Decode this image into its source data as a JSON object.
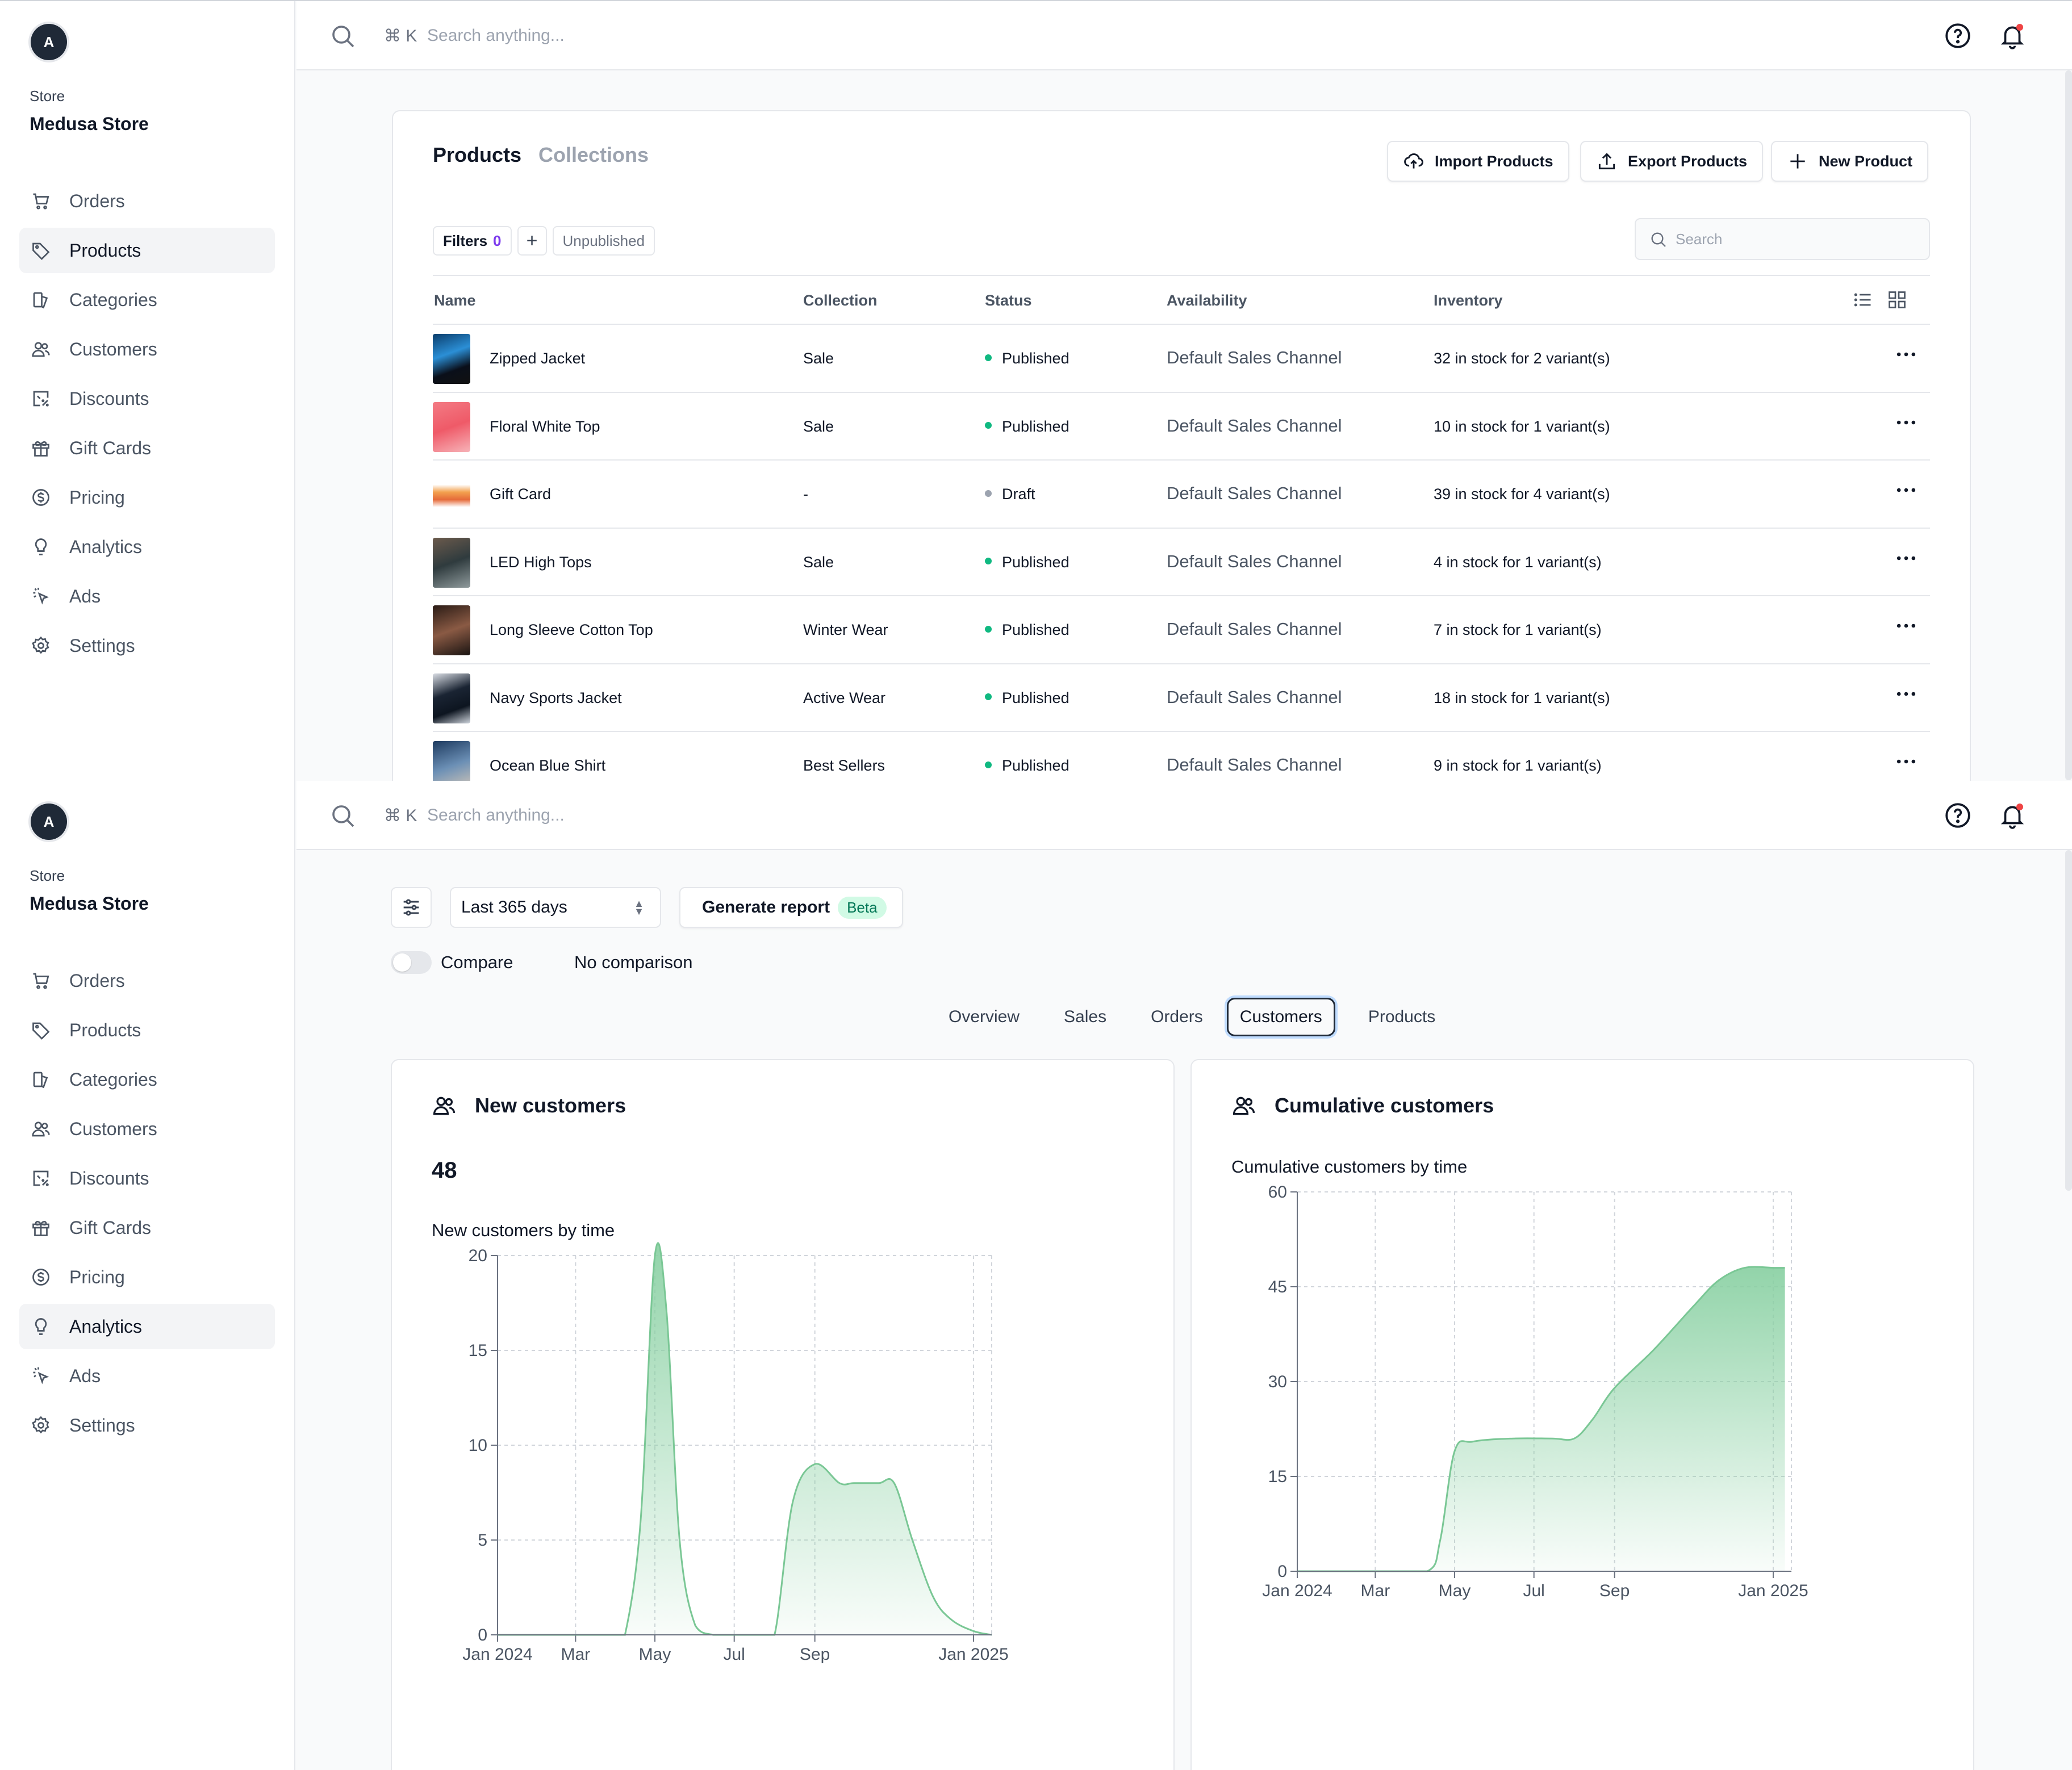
{
  "sidebar": {
    "avatar_letter": "A",
    "store_label": "Store",
    "store_name": "Medusa Store",
    "items": [
      {
        "label": "Orders",
        "icon": "cart-icon"
      },
      {
        "label": "Products",
        "icon": "tag-icon"
      },
      {
        "label": "Categories",
        "icon": "categories-icon"
      },
      {
        "label": "Customers",
        "icon": "users-icon"
      },
      {
        "label": "Discounts",
        "icon": "discount-icon"
      },
      {
        "label": "Gift Cards",
        "icon": "gift-icon"
      },
      {
        "label": "Pricing",
        "icon": "dollar-icon"
      },
      {
        "label": "Analytics",
        "icon": "lightbulb-icon"
      },
      {
        "label": "Ads",
        "icon": "cursor-click-icon"
      },
      {
        "label": "Settings",
        "icon": "gear-icon"
      }
    ]
  },
  "topbar": {
    "shortcut": "⌘ K",
    "search_placeholder": "Search anything..."
  },
  "products_page": {
    "tabs": [
      "Products",
      "Collections"
    ],
    "buttons": {
      "import": "Import Products",
      "export": "Export Products",
      "new": "New Product"
    },
    "filters_label": "Filters",
    "filters_count": "0",
    "filter_add": "+",
    "filter_chip": "Unpublished",
    "search_placeholder": "Search",
    "columns": [
      "Name",
      "Collection",
      "Status",
      "Availability",
      "Inventory"
    ],
    "rows": [
      {
        "name": "Zipped Jacket",
        "collection": "Sale",
        "status": "Published",
        "availability": "Default Sales Channel",
        "inventory": "32 in stock for 2 variant(s)"
      },
      {
        "name": "Floral White Top",
        "collection": "Sale",
        "status": "Published",
        "availability": "Default Sales Channel",
        "inventory": "10 in stock for 1 variant(s)"
      },
      {
        "name": "Gift Card",
        "collection": "-",
        "status": "Draft",
        "availability": "Default Sales Channel",
        "inventory": "39 in stock for 4 variant(s)"
      },
      {
        "name": "LED High Tops",
        "collection": "Sale",
        "status": "Published",
        "availability": "Default Sales Channel",
        "inventory": "4 in stock for 1 variant(s)"
      },
      {
        "name": "Long Sleeve Cotton Top",
        "collection": "Winter Wear",
        "status": "Published",
        "availability": "Default Sales Channel",
        "inventory": "7 in stock for 1 variant(s)"
      },
      {
        "name": "Navy Sports Jacket",
        "collection": "Active Wear",
        "status": "Published",
        "availability": "Default Sales Channel",
        "inventory": "18 in stock for 1 variant(s)"
      },
      {
        "name": "Ocean Blue Shirt",
        "collection": "Best Sellers",
        "status": "Published",
        "availability": "Default Sales Channel",
        "inventory": "9 in stock for 1 variant(s)"
      }
    ]
  },
  "analytics_page": {
    "range": "Last 365 days",
    "generate_report": "Generate report",
    "beta_badge": "Beta",
    "compare_label": "Compare",
    "comparison_value": "No comparison",
    "tabs": [
      "Overview",
      "Sales",
      "Orders",
      "Customers",
      "Products"
    ],
    "active_tab": "Customers",
    "new_customers": {
      "title": "New customers",
      "value": "48",
      "chart_title": "New customers by time"
    },
    "cumulative_customers": {
      "title": "Cumulative customers",
      "chart_title": "Cumulative customers by time"
    }
  },
  "colors": {
    "published": "#10b981",
    "draft": "#9ca3af",
    "chart_fill": "#86cfa0",
    "chart_line": "#7ac795"
  },
  "chart_data": [
    {
      "type": "area",
      "title": "New customers by time",
      "x_ticks": [
        "Jan 2024",
        "Mar",
        "May",
        "Jul",
        "Sep",
        "Jan 2025"
      ],
      "y_ticks": [
        0,
        5,
        10,
        15,
        20
      ],
      "ylim": [
        0,
        20
      ],
      "grid": true,
      "series": [
        {
          "x": [
            "2024-01-01",
            "2024-02-01",
            "2024-03-01",
            "2024-04-01",
            "2024-04-08",
            "2024-04-20",
            "2024-05-01",
            "2024-05-10",
            "2024-05-20",
            "2024-06-01",
            "2024-06-15",
            "2024-07-01",
            "2024-07-20",
            "2024-08-01",
            "2024-08-15",
            "2024-09-01",
            "2024-09-20",
            "2024-10-01",
            "2024-10-20",
            "2024-11-01",
            "2024-11-15",
            "2024-12-01",
            "2024-12-15",
            "2025-01-01",
            "2025-01-15"
          ],
          "y": [
            0,
            0,
            0,
            0,
            0,
            6,
            20,
            17,
            5,
            0.5,
            0,
            0,
            0,
            0,
            7,
            9,
            8,
            8,
            8,
            8,
            5,
            2,
            0.8,
            0.2,
            0
          ]
        }
      ]
    },
    {
      "type": "area",
      "title": "Cumulative customers by time",
      "x_ticks": [
        "Jan 2024",
        "Mar",
        "May",
        "Jul",
        "Sep",
        "Jan 2025"
      ],
      "y_ticks": [
        0,
        15,
        30,
        45,
        60
      ],
      "ylim": [
        0,
        60
      ],
      "grid": true,
      "series": [
        {
          "x": [
            "2024-01-01",
            "2024-03-01",
            "2024-04-10",
            "2024-04-20",
            "2024-05-01",
            "2024-05-15",
            "2024-06-15",
            "2024-07-15",
            "2024-08-01",
            "2024-08-15",
            "2024-09-01",
            "2024-10-01",
            "2024-11-01",
            "2024-11-20",
            "2024-12-10",
            "2025-01-01",
            "2025-01-10"
          ],
          "y": [
            0,
            0,
            0,
            5,
            19,
            20.5,
            21,
            21,
            21,
            24,
            29,
            35,
            42,
            46,
            48,
            48,
            48
          ]
        }
      ]
    }
  ]
}
